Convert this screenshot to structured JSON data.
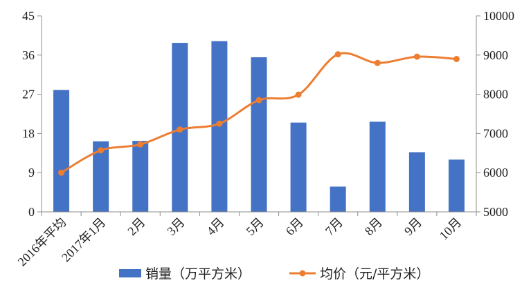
{
  "chart_data": {
    "type": "bar",
    "categories": [
      "2016年平均",
      "2017年1月",
      "2月",
      "3月",
      "4月",
      "5月",
      "6月",
      "7月",
      "8月",
      "9月",
      "10月"
    ],
    "series": [
      {
        "name": "销量（万平方米）",
        "type": "bar",
        "axis": "left",
        "color": "#4472c4",
        "values": [
          28,
          16.2,
          16.3,
          38.8,
          39.2,
          35.5,
          20.5,
          5.8,
          20.7,
          13.7,
          12
        ]
      },
      {
        "name": "均价（元/平方米）",
        "type": "line",
        "axis": "right",
        "color": "#ed7d31",
        "smooth": true,
        "values": [
          6000,
          6570,
          6720,
          7100,
          7250,
          7850,
          7990,
          9020,
          8800,
          8960,
          8900
        ]
      }
    ],
    "y_left": {
      "ylim": [
        0,
        45
      ],
      "ticks": [
        "0",
        "9",
        "18",
        "27",
        "36",
        "45"
      ]
    },
    "y_right": {
      "ylim": [
        5000,
        10000
      ],
      "ticks": [
        "5000",
        "6000",
        "7000",
        "8000",
        "9000",
        "10000"
      ]
    },
    "legend": {
      "placement": "bottom",
      "items": [
        "销量（万平方米）",
        "均价（元/平方米）"
      ]
    },
    "grid": false
  }
}
